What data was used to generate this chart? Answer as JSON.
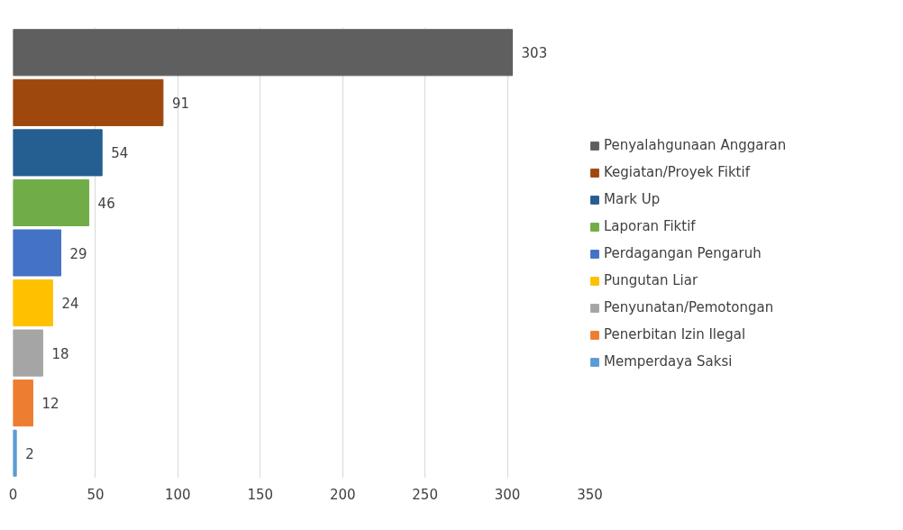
{
  "chart_data": {
    "type": "bar",
    "orientation": "horizontal",
    "categories": [
      null,
      null,
      null,
      null,
      null,
      null,
      null,
      null,
      null
    ],
    "series": [
      {
        "name": "Penyalahgunaan Anggaran",
        "color": "#5f5f5f",
        "values": [
          303,
          null,
          null,
          null,
          null,
          null,
          null,
          null,
          null
        ]
      },
      {
        "name": "Kegiatan/Proyek Fiktif",
        "color": "#9e480e",
        "values": [
          null,
          91,
          null,
          null,
          null,
          null,
          null,
          null,
          null
        ]
      },
      {
        "name": "Mark Up",
        "color": "#255e91",
        "values": [
          null,
          null,
          54,
          null,
          null,
          null,
          null,
          null,
          null
        ]
      },
      {
        "name": "Laporan Fiktif",
        "color": "#70ad47",
        "values": [
          null,
          null,
          null,
          46,
          null,
          null,
          null,
          null,
          null
        ]
      },
      {
        "name": "Perdagangan Pengaruh",
        "color": "#4472c4",
        "values": [
          null,
          null,
          null,
          null,
          29,
          null,
          null,
          null,
          null
        ]
      },
      {
        "name": "Pungutan Liar",
        "color": "#ffc000",
        "values": [
          null,
          null,
          null,
          null,
          null,
          24,
          null,
          null,
          null
        ]
      },
      {
        "name": "Penyunatan/Pemotongan",
        "color": "#a5a5a5",
        "values": [
          null,
          null,
          null,
          null,
          null,
          null,
          18,
          null,
          null
        ]
      },
      {
        "name": "Penerbitan Izin Ilegal",
        "color": "#ed7d31",
        "values": [
          null,
          null,
          null,
          null,
          null,
          null,
          null,
          12,
          null
        ]
      },
      {
        "name": "Memperdaya Saksi",
        "color": "#5b9bd5",
        "values": [
          null,
          null,
          null,
          null,
          null,
          null,
          null,
          null,
          2
        ]
      }
    ],
    "xlim": [
      0,
      350
    ],
    "xticks": [
      0,
      50,
      100,
      150,
      200,
      250,
      300,
      350
    ],
    "grid": "x",
    "legend": "right",
    "data_labels": true,
    "tick_labels": "x"
  }
}
